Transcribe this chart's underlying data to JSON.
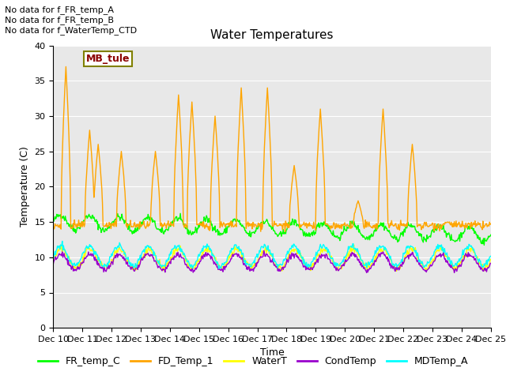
{
  "title": "Water Temperatures",
  "xlabel": "Time",
  "ylabel": "Temperature (C)",
  "ylim": [
    0,
    40
  ],
  "yticks": [
    0,
    5,
    10,
    15,
    20,
    25,
    30,
    35,
    40
  ],
  "x_labels": [
    "Dec 10",
    "Dec 11",
    "Dec 12",
    "Dec 13",
    "Dec 14",
    "Dec 15",
    "Dec 16",
    "Dec 17",
    "Dec 18",
    "Dec 19",
    "Dec 20",
    "Dec 21",
    "Dec 22",
    "Dec 23",
    "Dec 24",
    "Dec 25"
  ],
  "no_data_texts": [
    "No data for f_FR_temp_A",
    "No data for f_FR_temp_B",
    "No data for f_WaterTemp_CTD"
  ],
  "mb_tule_label": "MB_tule",
  "legend_entries": [
    {
      "label": "FR_temp_C",
      "color": "#00ff00"
    },
    {
      "label": "FD_Temp_1",
      "color": "#ffa500"
    },
    {
      "label": "WaterT",
      "color": "#ffff00"
    },
    {
      "label": "CondTemp",
      "color": "#9900cc"
    },
    {
      "label": "MDTemp_A",
      "color": "#00ffff"
    }
  ],
  "background_color": "#e8e8e8",
  "title_fontsize": 11,
  "axis_fontsize": 9,
  "tick_fontsize": 8,
  "nodata_fontsize": 8,
  "legend_fontsize": 9
}
